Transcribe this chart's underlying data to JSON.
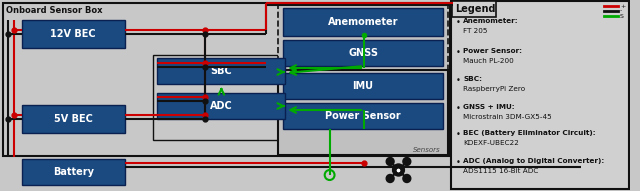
{
  "bg_color": "#c8c8c8",
  "box_bg": "#1a4a80",
  "box_text_color": "#ffffff",
  "border_color": "#000000",
  "red_wire": "#cc0000",
  "black_wire": "#111111",
  "green_wire": "#00aa00",
  "sensor_dash_bg": "#c0c0c0",
  "inner_box_bg": "#c0c0c0",
  "legend_bg": "#d0d0d0",
  "title_onboard": "Onboard Sensor Box",
  "labels": {
    "bec12": "12V BEC",
    "bec5": "5V BEC",
    "sbc": "SBC",
    "adc": "ADC",
    "battery": "Battery",
    "anemometer": "Anemometer",
    "gnss": "GNSS",
    "imu": "IMU",
    "power_sensor": "Power Sensor",
    "sensors_label": "Sensors"
  },
  "legend_title": "Legend",
  "legend_items_bold": [
    "Anemometer:",
    "Power Sensor:",
    "SBC:",
    "GNSS + IMU:",
    "BEC (Battery Eliminator Circuit):",
    "ADC (Analog to Digital Converter):"
  ],
  "legend_items_normal": [
    "FT 205",
    "Mauch PL-200",
    "RaspberryPi Zero",
    "Microstrain 3DM-GX5-45",
    "KDEXF-UBEC22",
    "ADS1115 16-Bit ADC"
  ]
}
